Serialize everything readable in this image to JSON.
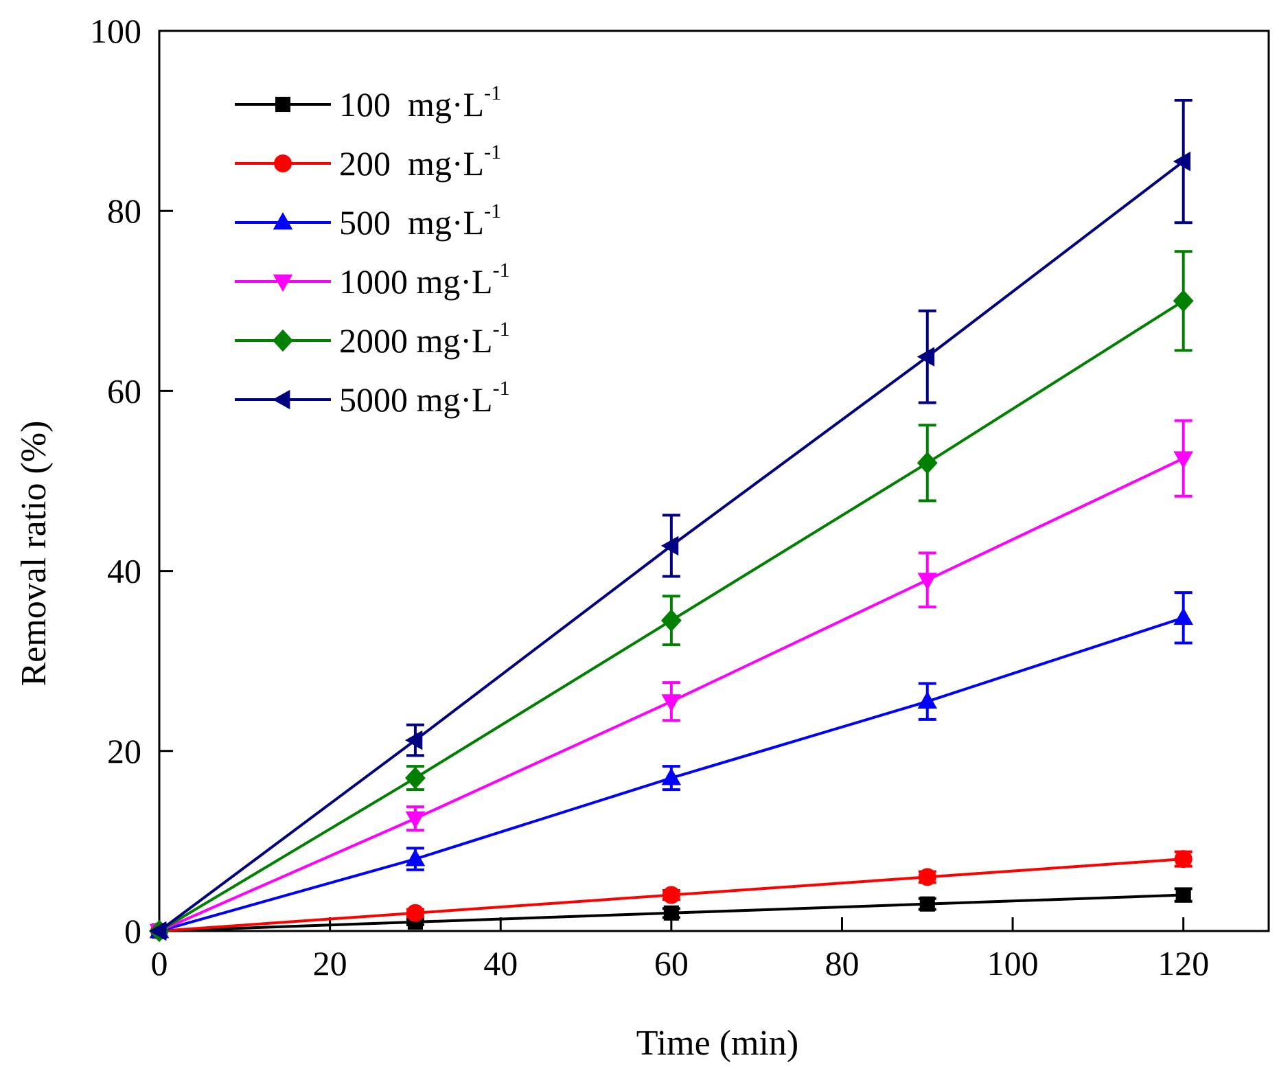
{
  "chart_data": {
    "type": "line",
    "title": "",
    "xlabel": "Time  (min)",
    "ylabel": "Removal ratio  (%)",
    "xlim": [
      0,
      130
    ],
    "ylim": [
      0,
      100
    ],
    "xticks": [
      0,
      20,
      40,
      60,
      80,
      100,
      120
    ],
    "yticks": [
      0,
      20,
      40,
      60,
      80,
      100
    ],
    "x": [
      0,
      30,
      60,
      90,
      120
    ],
    "legend_position": "top-left",
    "series": [
      {
        "name": "100  mg·L",
        "superscript": "-1",
        "color": "#000000",
        "marker": "square",
        "values": [
          0,
          1,
          2,
          3,
          4
        ],
        "errors": [
          0,
          0.3,
          0.5,
          0.6,
          0.7
        ]
      },
      {
        "name": "200  mg·L",
        "superscript": "-1",
        "color": "#ff0000",
        "marker": "circle",
        "values": [
          0,
          2,
          4,
          6,
          8
        ],
        "errors": [
          0,
          0.4,
          0.5,
          0.6,
          0.8
        ]
      },
      {
        "name": "500  mg·L",
        "superscript": "-1",
        "color": "#0000ff",
        "marker": "triangle-up",
        "values": [
          0,
          8,
          17,
          25.5,
          34.8
        ],
        "errors": [
          0,
          1.2,
          1.3,
          2.0,
          2.8
        ]
      },
      {
        "name": "1000 mg·L",
        "superscript": "-1",
        "color": "#ff00ff",
        "marker": "triangle-down",
        "values": [
          0,
          12.5,
          25.5,
          39,
          52.5
        ],
        "errors": [
          0,
          1.3,
          2.1,
          3.0,
          4.2
        ]
      },
      {
        "name": "2000 mg·L",
        "superscript": "-1",
        "color": "#008000",
        "marker": "diamond",
        "values": [
          0,
          17,
          34.5,
          52,
          70
        ],
        "errors": [
          0,
          1.3,
          2.7,
          4.2,
          5.5
        ]
      },
      {
        "name": "5000 mg·L",
        "superscript": "-1",
        "color": "#000080",
        "marker": "triangle-left",
        "values": [
          0,
          21.2,
          42.8,
          63.8,
          85.5
        ],
        "errors": [
          0,
          1.7,
          3.4,
          5.1,
          6.8
        ]
      }
    ]
  }
}
